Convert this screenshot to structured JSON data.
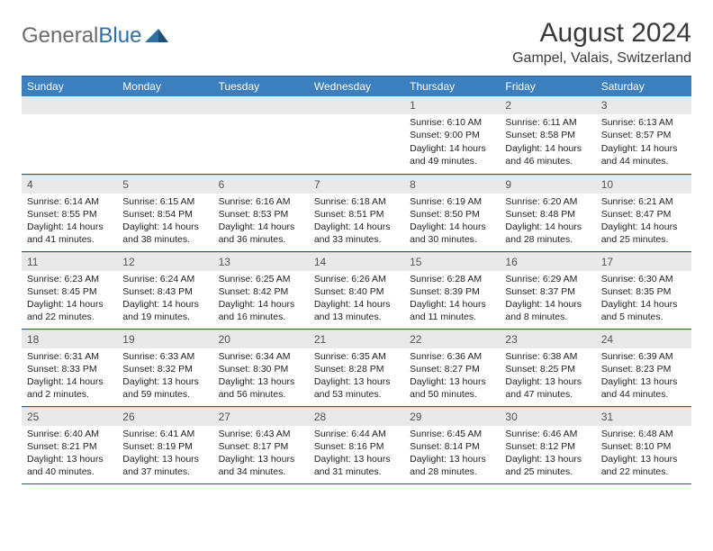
{
  "logo": {
    "text1": "General",
    "text2": "Blue"
  },
  "title": "August 2024",
  "location": "Gampel, Valais, Switzerland",
  "colors": {
    "header_bg": "#3b7fbf",
    "header_text": "#ffffff",
    "daynum_bg": "#e9e9e9",
    "border": "#2a5d8a",
    "logo_gray": "#6b6b6b",
    "logo_blue": "#2f6fa8"
  },
  "weekdays": [
    "Sunday",
    "Monday",
    "Tuesday",
    "Wednesday",
    "Thursday",
    "Friday",
    "Saturday"
  ],
  "weeks": [
    [
      null,
      null,
      null,
      null,
      {
        "n": "1",
        "sr": "Sunrise: 6:10 AM",
        "ss": "Sunset: 9:00 PM",
        "dl": "Daylight: 14 hours and 49 minutes."
      },
      {
        "n": "2",
        "sr": "Sunrise: 6:11 AM",
        "ss": "Sunset: 8:58 PM",
        "dl": "Daylight: 14 hours and 46 minutes."
      },
      {
        "n": "3",
        "sr": "Sunrise: 6:13 AM",
        "ss": "Sunset: 8:57 PM",
        "dl": "Daylight: 14 hours and 44 minutes."
      }
    ],
    [
      {
        "n": "4",
        "sr": "Sunrise: 6:14 AM",
        "ss": "Sunset: 8:55 PM",
        "dl": "Daylight: 14 hours and 41 minutes."
      },
      {
        "n": "5",
        "sr": "Sunrise: 6:15 AM",
        "ss": "Sunset: 8:54 PM",
        "dl": "Daylight: 14 hours and 38 minutes."
      },
      {
        "n": "6",
        "sr": "Sunrise: 6:16 AM",
        "ss": "Sunset: 8:53 PM",
        "dl": "Daylight: 14 hours and 36 minutes."
      },
      {
        "n": "7",
        "sr": "Sunrise: 6:18 AM",
        "ss": "Sunset: 8:51 PM",
        "dl": "Daylight: 14 hours and 33 minutes."
      },
      {
        "n": "8",
        "sr": "Sunrise: 6:19 AM",
        "ss": "Sunset: 8:50 PM",
        "dl": "Daylight: 14 hours and 30 minutes."
      },
      {
        "n": "9",
        "sr": "Sunrise: 6:20 AM",
        "ss": "Sunset: 8:48 PM",
        "dl": "Daylight: 14 hours and 28 minutes."
      },
      {
        "n": "10",
        "sr": "Sunrise: 6:21 AM",
        "ss": "Sunset: 8:47 PM",
        "dl": "Daylight: 14 hours and 25 minutes."
      }
    ],
    [
      {
        "n": "11",
        "sr": "Sunrise: 6:23 AM",
        "ss": "Sunset: 8:45 PM",
        "dl": "Daylight: 14 hours and 22 minutes."
      },
      {
        "n": "12",
        "sr": "Sunrise: 6:24 AM",
        "ss": "Sunset: 8:43 PM",
        "dl": "Daylight: 14 hours and 19 minutes."
      },
      {
        "n": "13",
        "sr": "Sunrise: 6:25 AM",
        "ss": "Sunset: 8:42 PM",
        "dl": "Daylight: 14 hours and 16 minutes."
      },
      {
        "n": "14",
        "sr": "Sunrise: 6:26 AM",
        "ss": "Sunset: 8:40 PM",
        "dl": "Daylight: 14 hours and 13 minutes."
      },
      {
        "n": "15",
        "sr": "Sunrise: 6:28 AM",
        "ss": "Sunset: 8:39 PM",
        "dl": "Daylight: 14 hours and 11 minutes."
      },
      {
        "n": "16",
        "sr": "Sunrise: 6:29 AM",
        "ss": "Sunset: 8:37 PM",
        "dl": "Daylight: 14 hours and 8 minutes."
      },
      {
        "n": "17",
        "sr": "Sunrise: 6:30 AM",
        "ss": "Sunset: 8:35 PM",
        "dl": "Daylight: 14 hours and 5 minutes."
      }
    ],
    [
      {
        "n": "18",
        "sr": "Sunrise: 6:31 AM",
        "ss": "Sunset: 8:33 PM",
        "dl": "Daylight: 14 hours and 2 minutes."
      },
      {
        "n": "19",
        "sr": "Sunrise: 6:33 AM",
        "ss": "Sunset: 8:32 PM",
        "dl": "Daylight: 13 hours and 59 minutes."
      },
      {
        "n": "20",
        "sr": "Sunrise: 6:34 AM",
        "ss": "Sunset: 8:30 PM",
        "dl": "Daylight: 13 hours and 56 minutes."
      },
      {
        "n": "21",
        "sr": "Sunrise: 6:35 AM",
        "ss": "Sunset: 8:28 PM",
        "dl": "Daylight: 13 hours and 53 minutes."
      },
      {
        "n": "22",
        "sr": "Sunrise: 6:36 AM",
        "ss": "Sunset: 8:27 PM",
        "dl": "Daylight: 13 hours and 50 minutes."
      },
      {
        "n": "23",
        "sr": "Sunrise: 6:38 AM",
        "ss": "Sunset: 8:25 PM",
        "dl": "Daylight: 13 hours and 47 minutes."
      },
      {
        "n": "24",
        "sr": "Sunrise: 6:39 AM",
        "ss": "Sunset: 8:23 PM",
        "dl": "Daylight: 13 hours and 44 minutes."
      }
    ],
    [
      {
        "n": "25",
        "sr": "Sunrise: 6:40 AM",
        "ss": "Sunset: 8:21 PM",
        "dl": "Daylight: 13 hours and 40 minutes."
      },
      {
        "n": "26",
        "sr": "Sunrise: 6:41 AM",
        "ss": "Sunset: 8:19 PM",
        "dl": "Daylight: 13 hours and 37 minutes."
      },
      {
        "n": "27",
        "sr": "Sunrise: 6:43 AM",
        "ss": "Sunset: 8:17 PM",
        "dl": "Daylight: 13 hours and 34 minutes."
      },
      {
        "n": "28",
        "sr": "Sunrise: 6:44 AM",
        "ss": "Sunset: 8:16 PM",
        "dl": "Daylight: 13 hours and 31 minutes."
      },
      {
        "n": "29",
        "sr": "Sunrise: 6:45 AM",
        "ss": "Sunset: 8:14 PM",
        "dl": "Daylight: 13 hours and 28 minutes."
      },
      {
        "n": "30",
        "sr": "Sunrise: 6:46 AM",
        "ss": "Sunset: 8:12 PM",
        "dl": "Daylight: 13 hours and 25 minutes."
      },
      {
        "n": "31",
        "sr": "Sunrise: 6:48 AM",
        "ss": "Sunset: 8:10 PM",
        "dl": "Daylight: 13 hours and 22 minutes."
      }
    ]
  ]
}
